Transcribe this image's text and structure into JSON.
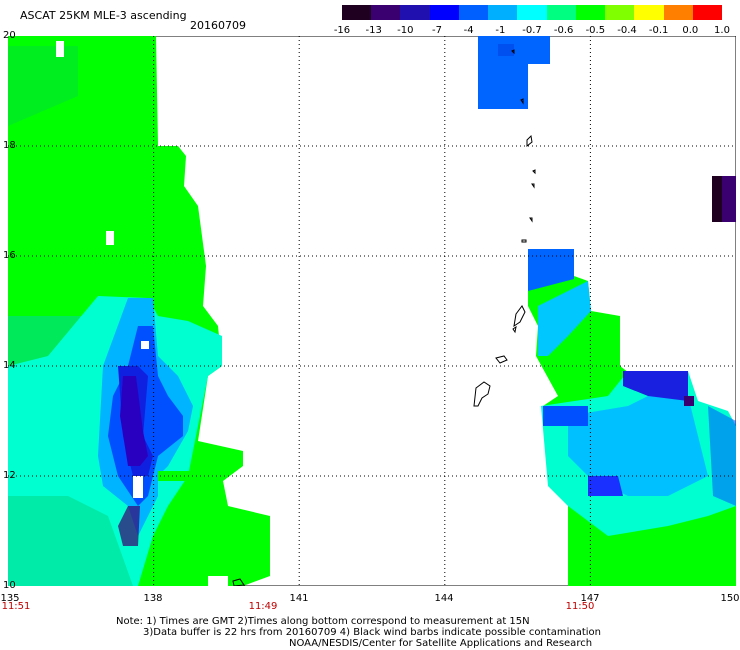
{
  "header": {
    "title": "ASCAT 25KM MLE-3 ascending",
    "date": "20160709"
  },
  "colorbar": {
    "ticks": [
      "-16",
      "-13",
      "-10",
      "-7",
      "-4",
      "-1",
      "-0.7",
      "-0.6",
      "-0.5",
      "-0.4",
      "-0.1",
      "0.0",
      "1.0"
    ],
    "colors": [
      "#200020",
      "#3a0070",
      "#2010b0",
      "#0000ff",
      "#0060ff",
      "#00b0ff",
      "#00ffff",
      "#00ff80",
      "#00ff00",
      "#80ff00",
      "#ffff00",
      "#ff8000",
      "#ff0000"
    ]
  },
  "axes": {
    "lat_labels": [
      "20",
      "18",
      "16",
      "14",
      "12",
      "10"
    ],
    "lon_labels": [
      "135",
      "138",
      "141",
      "144",
      "147",
      "150"
    ],
    "times": [
      "11:51",
      "11:49",
      "11:50"
    ]
  },
  "notes": {
    "line1": "Note: 1) Times are GMT 2)Times along bottom correspond to measurement at 15N",
    "line2": "3)Data buffer is 22 hrs from 20160709 4) Black wind barbs indicate possible contamination",
    "line3": "NOAA/NESDIS/Center for Satellite Applications and Research"
  },
  "colors": {
    "green": "#00ff00",
    "cyan": "#00ffff",
    "blue": "#0060ff",
    "deep_blue": "#0000ff",
    "violet": "#3a0070"
  }
}
